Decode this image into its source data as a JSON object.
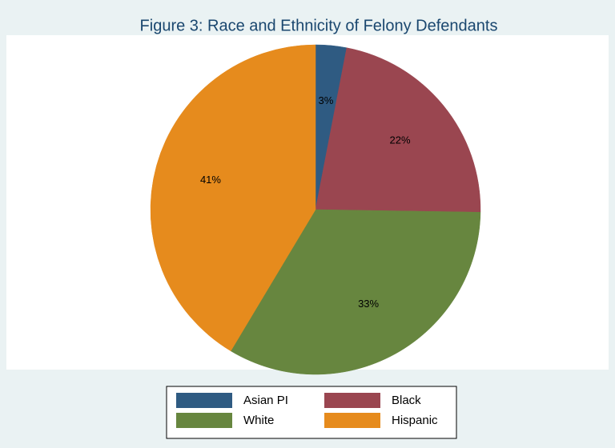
{
  "chart_data": {
    "type": "pie",
    "title": "Figure 3: Race and Ethnicity of Felony Defendants",
    "categories": [
      "Asian PI",
      "Black",
      "White",
      "Hispanic"
    ],
    "values": [
      3,
      22,
      33,
      41
    ],
    "value_labels": [
      "3%",
      "22%",
      "33%",
      "41%"
    ],
    "colors": [
      "#2f5b82",
      "#9a4650",
      "#67863f",
      "#e68b1d"
    ],
    "legend": "bottom"
  }
}
